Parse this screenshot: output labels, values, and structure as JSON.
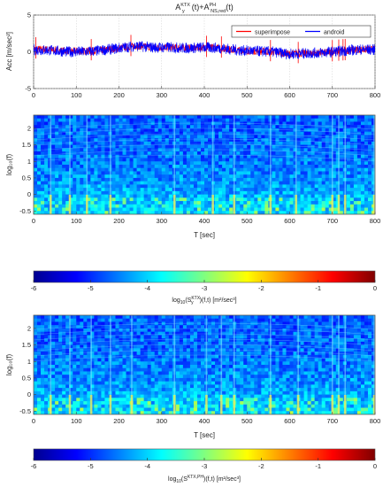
{
  "colors": {
    "superimpose": "#ff0000",
    "android": "#0000ff"
  },
  "chart_data": [
    {
      "type": "line",
      "title_base": "A",
      "title_sup1": "KTX",
      "title_sub1": "y",
      "title_mid": "(t)+A",
      "title_sup2": "PH",
      "title_sub2": "NS,red",
      "title_tail": "(t)",
      "ylabel": "Acc [m/sec²]",
      "xlim": [
        0,
        800
      ],
      "ylim": [
        -5,
        5
      ],
      "xticks": [
        "0",
        "100",
        "200",
        "300",
        "400",
        "500",
        "600",
        "700",
        "800"
      ],
      "yticks": [
        "5",
        "0",
        "-5"
      ],
      "grid": true,
      "legend_position": "top-right",
      "series": [
        {
          "name": "superimpose",
          "color": "#ff0000",
          "x": [
            0,
            40,
            80,
            120,
            160,
            200,
            240,
            280,
            320,
            360,
            400,
            440,
            480,
            520,
            560,
            600,
            640,
            680,
            720,
            760,
            800
          ],
          "y": [
            0.4,
            0.3,
            0.1,
            0.1,
            0.2,
            0.5,
            0.8,
            0.6,
            0.6,
            0.5,
            0.6,
            0.5,
            0.2,
            0.1,
            0.0,
            -0.3,
            -0.2,
            -0.1,
            0.1,
            0.3,
            0.3
          ],
          "spikes_x": [
            5,
            135,
            228,
            405,
            440,
            555,
            620,
            700,
            715,
            725,
            730
          ]
        },
        {
          "name": "android",
          "color": "#0000ff",
          "x": [
            0,
            40,
            80,
            120,
            160,
            200,
            240,
            280,
            320,
            360,
            400,
            440,
            480,
            520,
            560,
            600,
            640,
            680,
            720,
            760,
            800
          ],
          "y": [
            0.3,
            0.2,
            0.0,
            0.0,
            0.2,
            0.5,
            0.8,
            0.6,
            0.6,
            0.5,
            0.6,
            0.5,
            0.2,
            0.1,
            0.0,
            -0.3,
            -0.2,
            -0.1,
            0.1,
            0.3,
            0.3
          ]
        }
      ]
    },
    {
      "type": "heatmap",
      "ylabel": "log₁₀(f)",
      "xlabel": "T [sec]",
      "xlim": [
        0,
        800
      ],
      "ylim": [
        -0.6,
        2.4
      ],
      "xticks": [
        "0",
        "100",
        "200",
        "300",
        "400",
        "500",
        "600",
        "700",
        "800"
      ],
      "yticks": [
        "2",
        "1.5",
        "1",
        "0.5",
        "0",
        "-0.5"
      ],
      "colorbar": {
        "range": [
          -6,
          0
        ],
        "ticks": [
          "-6",
          "-5",
          "-4",
          "-3",
          "-2",
          "-1",
          "0"
        ],
        "label_base": "log",
        "label_sub": "10",
        "label_mid": "(S",
        "label_sup": "KTX",
        "label_sub2": "y",
        "label_tail": ")(f,t) [m²/sec³]"
      }
    },
    {
      "type": "heatmap",
      "ylabel": "log₁₀(f)",
      "xlabel": "T [sec]",
      "xlim": [
        0,
        800
      ],
      "ylim": [
        -0.6,
        2.4
      ],
      "xticks": [
        "0",
        "100",
        "200",
        "300",
        "400",
        "500",
        "600",
        "700",
        "800"
      ],
      "yticks": [
        "2",
        "1.5",
        "1",
        "0.5",
        "0",
        "-0.5"
      ],
      "colorbar": {
        "range": [
          -6,
          0
        ],
        "ticks": [
          "-6",
          "-5",
          "-4",
          "-3",
          "-2",
          "-1",
          "0"
        ],
        "label_base": "log",
        "label_sub": "10",
        "label_mid": "(S",
        "label_sup": "KTX,PH",
        "label_sub2": "",
        "label_tail": ")(f,t) [m²/sec³]"
      }
    }
  ]
}
